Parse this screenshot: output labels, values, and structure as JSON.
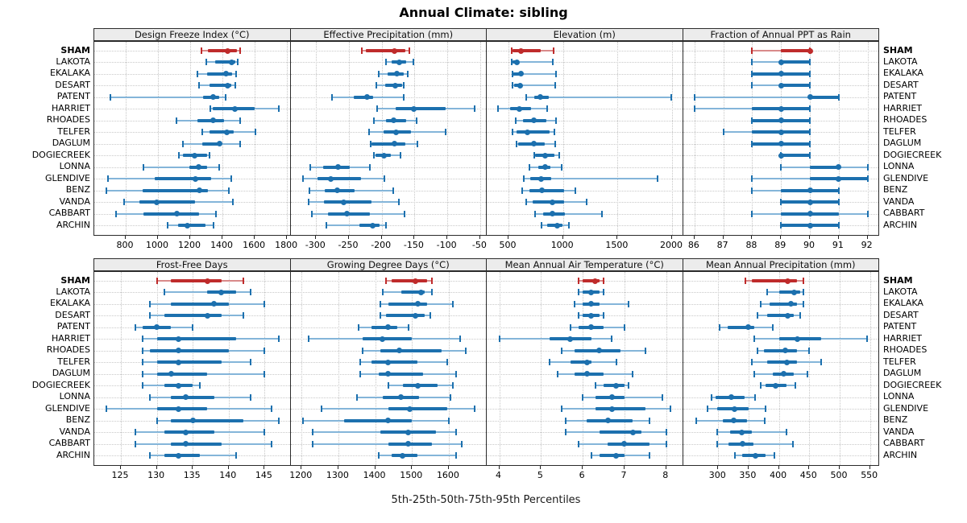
{
  "title": "Annual Climate: sibling",
  "footer_label": "5th-25th-50th-75th-95th Percentiles",
  "colors": {
    "highlight": "#bf2b2b",
    "highlight_light": "#d98a8a",
    "normal": "#1c70ae",
    "normal_light": "#84b5d9",
    "header_bg": "#ececec",
    "grid": "#c9c9c9"
  },
  "chart_data": {
    "type": "percentile-dotplot",
    "layout": "2 rows x 4 columns, shared station axis",
    "percentiles": [
      5,
      25,
      50,
      75,
      95
    ],
    "highlight_station": "SHAM",
    "stations": [
      "SHAM",
      "LAKOTA",
      "EKALAKA",
      "DESART",
      "PATENT",
      "HARRIET",
      "RHOADES",
      "TELFER",
      "DAGLUM",
      "DOGIECREEK",
      "LONNA",
      "GLENDIVE",
      "BENZ",
      "VANDA",
      "CABBART",
      "ARCHIN"
    ],
    "panels": [
      {
        "title": "Design Freeze Index (°C)",
        "xlim": [
          605,
          1822
        ],
        "ticks": [
          800,
          1000,
          1200,
          1400,
          1600,
          1800
        ],
        "values": [
          [
            1270,
            1310,
            1430,
            1490,
            1510
          ],
          [
            1300,
            1355,
            1455,
            1480,
            1495
          ],
          [
            1245,
            1305,
            1420,
            1460,
            1485
          ],
          [
            1255,
            1320,
            1430,
            1455,
            1480
          ],
          [
            705,
            1280,
            1340,
            1380,
            1420
          ],
          [
            1325,
            1340,
            1475,
            1600,
            1750
          ],
          [
            1115,
            1245,
            1340,
            1410,
            1510
          ],
          [
            1275,
            1320,
            1425,
            1470,
            1605
          ],
          [
            1155,
            1275,
            1380,
            1395,
            1510
          ],
          [
            1130,
            1155,
            1225,
            1305,
            1320
          ],
          [
            910,
            1195,
            1250,
            1305,
            1380
          ],
          [
            690,
            980,
            1230,
            1330,
            1455
          ],
          [
            680,
            905,
            1255,
            1310,
            1440
          ],
          [
            790,
            885,
            990,
            1230,
            1465
          ],
          [
            740,
            910,
            1115,
            1255,
            1360
          ],
          [
            1060,
            1125,
            1180,
            1295,
            1345
          ]
        ]
      },
      {
        "title": "Effective Precipitation (mm)",
        "xlim": [
          -339,
          -40
        ],
        "ticks": [
          -300,
          -250,
          -200,
          -150,
          -100,
          -50
        ],
        "values": [
          [
            -230,
            -224,
            -181,
            -164,
            -158
          ],
          [
            -194,
            -185,
            -173,
            -163,
            -152
          ],
          [
            -205,
            -191,
            -177,
            -167,
            -160
          ],
          [
            -208,
            -195,
            -179,
            -169,
            -166
          ],
          [
            -276,
            -242,
            -222,
            -213,
            -167
          ],
          [
            -207,
            -179,
            -151,
            -103,
            -59
          ],
          [
            -212,
            -194,
            -182,
            -163,
            -147
          ],
          [
            -219,
            -197,
            -178,
            -156,
            -103
          ],
          [
            -217,
            -215,
            -180,
            -164,
            -146
          ],
          [
            -212,
            -209,
            -196,
            -186,
            -171
          ],
          [
            -309,
            -289,
            -267,
            -249,
            -218
          ],
          [
            -320,
            -298,
            -278,
            -231,
            -196
          ],
          [
            -310,
            -287,
            -268,
            -241,
            -182
          ],
          [
            -311,
            -288,
            -258,
            -216,
            -174
          ],
          [
            -306,
            -282,
            -253,
            -218,
            -165
          ],
          [
            -284,
            -234,
            -214,
            -203,
            -194
          ]
        ]
      },
      {
        "title": "Elevation (m)",
        "xlim": [
          300,
          2100
        ],
        "ticks": [
          500,
          1000,
          1500,
          2000
        ],
        "values": [
          [
            530,
            540,
            615,
            795,
            915
          ],
          [
            530,
            537,
            575,
            590,
            905
          ],
          [
            535,
            540,
            615,
            630,
            935
          ],
          [
            535,
            550,
            605,
            610,
            930
          ],
          [
            660,
            735,
            795,
            870,
            1990
          ],
          [
            400,
            512,
            603,
            710,
            855
          ],
          [
            565,
            630,
            730,
            850,
            935
          ],
          [
            537,
            575,
            670,
            875,
            920
          ],
          [
            570,
            585,
            730,
            835,
            925
          ],
          [
            735,
            745,
            835,
            920,
            965
          ],
          [
            695,
            770,
            835,
            885,
            990
          ],
          [
            640,
            700,
            800,
            895,
            1870
          ],
          [
            625,
            695,
            805,
            1010,
            1110
          ],
          [
            660,
            725,
            905,
            1010,
            1215
          ],
          [
            740,
            820,
            905,
            1015,
            1360
          ],
          [
            800,
            855,
            945,
            995,
            1055
          ]
        ]
      },
      {
        "title": "Fraction of Annual PPT as Rain",
        "xlim": [
          85.6,
          92.4
        ],
        "ticks": [
          86,
          87,
          88,
          89,
          90,
          91,
          92
        ],
        "values": [
          [
            88,
            89,
            90,
            90,
            90
          ],
          [
            88,
            89,
            89,
            90,
            90
          ],
          [
            88,
            88,
            89,
            90,
            90
          ],
          [
            88,
            89,
            89,
            90,
            90
          ],
          [
            86,
            90,
            90,
            91,
            91
          ],
          [
            86,
            88,
            89,
            90,
            90
          ],
          [
            88,
            88,
            89,
            90,
            90
          ],
          [
            87,
            88,
            89,
            90,
            90
          ],
          [
            88,
            88,
            89,
            90,
            90
          ],
          [
            89,
            89,
            89,
            90,
            90
          ],
          [
            89,
            90,
            91,
            91,
            92
          ],
          [
            88,
            90,
            91,
            92,
            92
          ],
          [
            88,
            89,
            90,
            91,
            91
          ],
          [
            89,
            89,
            90,
            91,
            91
          ],
          [
            88,
            89,
            90,
            91,
            92
          ],
          [
            89,
            89,
            90,
            91,
            91
          ]
        ]
      },
      {
        "title": "Frost-Free Days",
        "xlim": [
          121.3,
          148.6
        ],
        "ticks": [
          125,
          130,
          135,
          140,
          145
        ],
        "values": [
          [
            130,
            132,
            137,
            139,
            142
          ],
          [
            131,
            137,
            139,
            141,
            143
          ],
          [
            129,
            132,
            138,
            140,
            145
          ],
          [
            129,
            131,
            137,
            139,
            142
          ],
          [
            127,
            128,
            130,
            132,
            135
          ],
          [
            128,
            130,
            133,
            141,
            147
          ],
          [
            128,
            129,
            133,
            140,
            145
          ],
          [
            128,
            130,
            133,
            139,
            143
          ],
          [
            128,
            130,
            132,
            137,
            145
          ],
          [
            128,
            131,
            133,
            135,
            136
          ],
          [
            129,
            132,
            134,
            138,
            143
          ],
          [
            123,
            130,
            133,
            137,
            146
          ],
          [
            130,
            132,
            135,
            142,
            147
          ],
          [
            127,
            131,
            134,
            138,
            145
          ],
          [
            127,
            132,
            134,
            139,
            146
          ],
          [
            129,
            131,
            133,
            136,
            141
          ]
        ]
      },
      {
        "title": "Growing Degree Days (°C)",
        "xlim": [
          1170,
          1703
        ],
        "ticks": [
          1200,
          1300,
          1400,
          1500,
          1600
        ],
        "values": [
          [
            1430,
            1445,
            1510,
            1540,
            1555
          ],
          [
            1420,
            1470,
            1525,
            1535,
            1555
          ],
          [
            1415,
            1435,
            1515,
            1540,
            1610
          ],
          [
            1415,
            1430,
            1510,
            1535,
            1550
          ],
          [
            1355,
            1390,
            1435,
            1460,
            1490
          ],
          [
            1220,
            1365,
            1420,
            1500,
            1630
          ],
          [
            1365,
            1415,
            1465,
            1580,
            1645
          ],
          [
            1360,
            1390,
            1435,
            1515,
            1595
          ],
          [
            1360,
            1410,
            1435,
            1530,
            1620
          ],
          [
            1435,
            1475,
            1515,
            1570,
            1610
          ],
          [
            1350,
            1420,
            1470,
            1520,
            1605
          ],
          [
            1255,
            1435,
            1495,
            1595,
            1670
          ],
          [
            1205,
            1315,
            1435,
            1500,
            1600
          ],
          [
            1230,
            1415,
            1490,
            1565,
            1620
          ],
          [
            1230,
            1435,
            1490,
            1555,
            1635
          ],
          [
            1410,
            1445,
            1475,
            1515,
            1620
          ]
        ]
      },
      {
        "title": "Mean Annual Air Temperature (°C)",
        "xlim": [
          3.7,
          8.4
        ],
        "ticks": [
          4,
          5,
          6,
          7,
          8
        ],
        "values": [
          [
            5.9,
            6.0,
            6.3,
            6.4,
            6.5
          ],
          [
            5.9,
            6.0,
            6.2,
            6.4,
            6.5
          ],
          [
            5.8,
            6.0,
            6.2,
            6.4,
            7.1
          ],
          [
            5.9,
            6.0,
            6.2,
            6.4,
            6.5
          ],
          [
            5.7,
            5.9,
            6.2,
            6.5,
            7.0
          ],
          [
            4.0,
            5.2,
            5.7,
            6.2,
            6.7
          ],
          [
            5.5,
            5.8,
            6.4,
            6.9,
            7.5
          ],
          [
            5.2,
            5.7,
            6.1,
            6.2,
            6.8
          ],
          [
            5.4,
            5.8,
            6.1,
            6.5,
            7.2
          ],
          [
            6.3,
            6.5,
            6.8,
            7.0,
            7.1
          ],
          [
            6.0,
            6.3,
            6.7,
            7.0,
            7.9
          ],
          [
            5.5,
            6.3,
            6.7,
            7.5,
            8.1
          ],
          [
            5.6,
            6.1,
            6.6,
            7.2,
            7.6
          ],
          [
            5.6,
            6.4,
            7.2,
            7.4,
            8.0
          ],
          [
            5.9,
            6.6,
            7.0,
            7.6,
            8.0
          ],
          [
            6.2,
            6.4,
            6.8,
            7.0,
            7.6
          ]
        ]
      },
      {
        "title": "Mean Annual Precipitation (mm)",
        "xlim": [
          242,
          565
        ],
        "ticks": [
          300,
          350,
          400,
          450,
          500,
          550
        ],
        "values": [
          [
            345,
            355,
            415,
            430,
            440
          ],
          [
            380,
            400,
            425,
            435,
            440
          ],
          [
            370,
            385,
            420,
            430,
            440
          ],
          [
            365,
            380,
            415,
            425,
            435
          ],
          [
            303,
            315,
            350,
            360,
            390
          ],
          [
            360,
            400,
            430,
            470,
            545
          ],
          [
            365,
            375,
            410,
            430,
            450
          ],
          [
            355,
            380,
            413,
            430,
            470
          ],
          [
            360,
            390,
            408,
            425,
            447
          ],
          [
            370,
            378,
            395,
            413,
            427
          ],
          [
            289,
            296,
            322,
            343,
            361
          ],
          [
            282,
            298,
            327,
            350,
            378
          ],
          [
            264,
            308,
            326,
            347,
            377
          ],
          [
            298,
            319,
            339,
            356,
            413
          ],
          [
            298,
            317,
            340,
            358,
            423
          ],
          [
            328,
            339,
            362,
            378,
            393
          ]
        ]
      }
    ]
  }
}
